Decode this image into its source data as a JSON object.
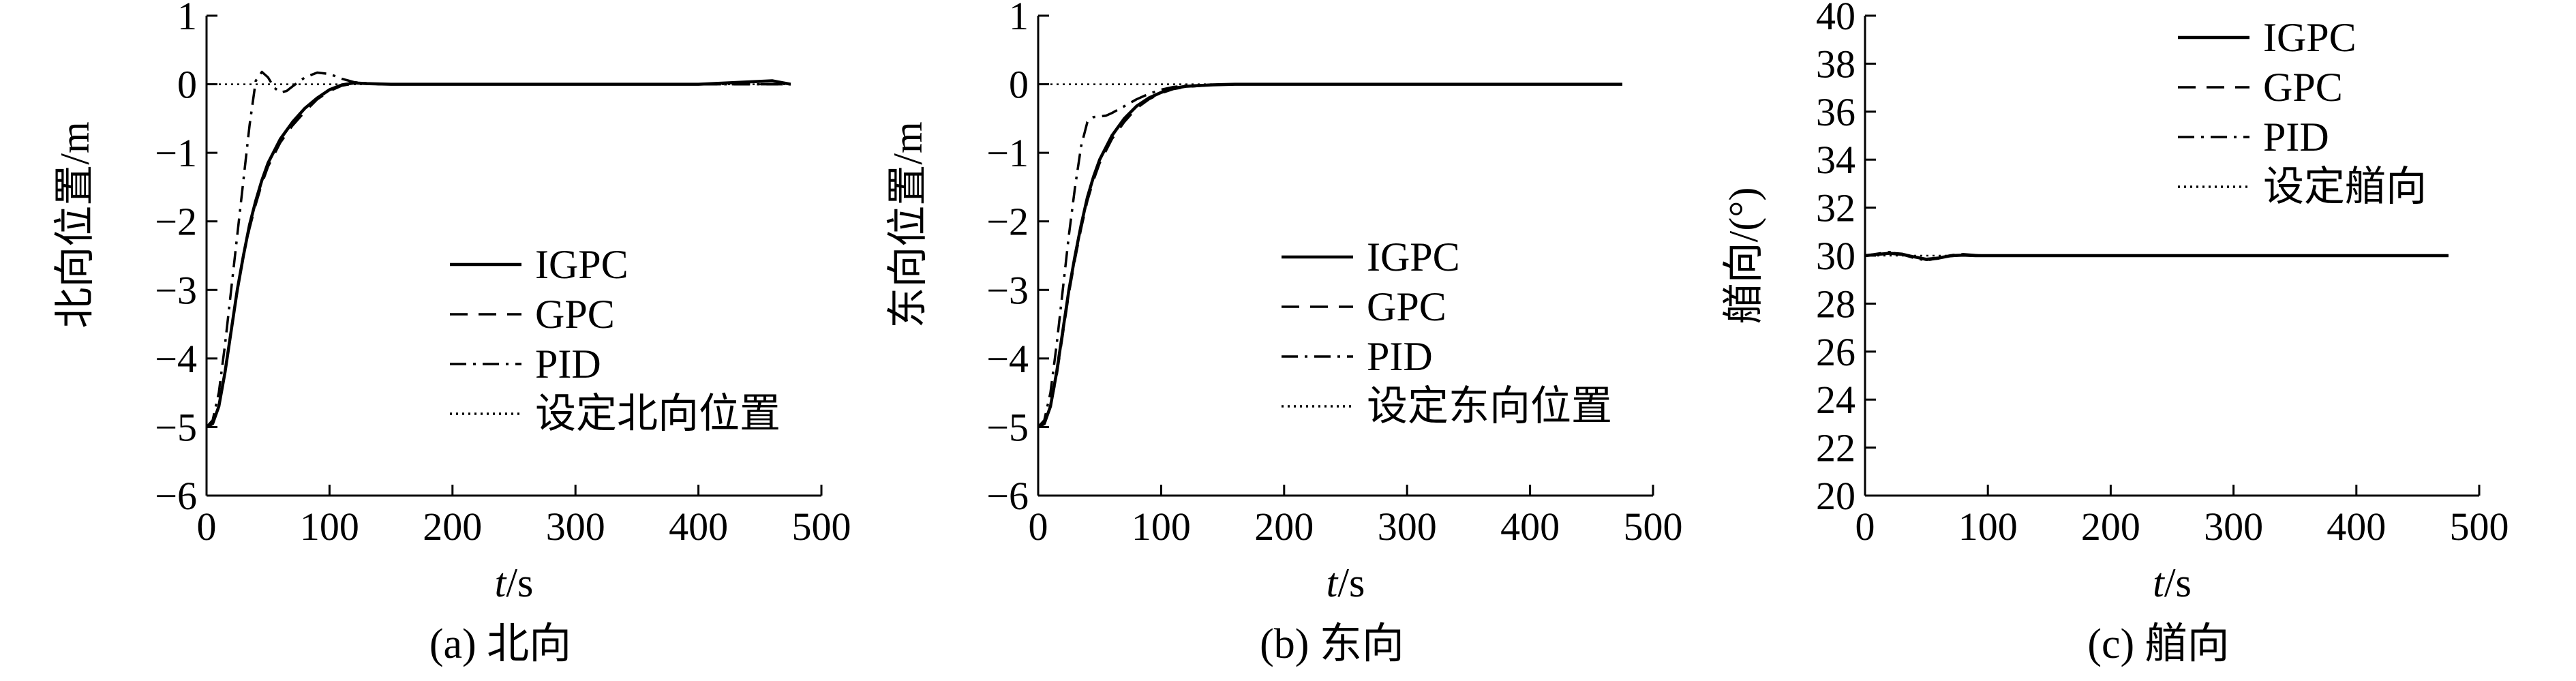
{
  "chart_data": [
    {
      "type": "line",
      "panel_label": "(a) 北向",
      "xlabel_italic": "t",
      "xlabel_unit": "/s",
      "ylabel": "北向位置/m",
      "xlim": [
        0,
        500
      ],
      "ylim": [
        -6,
        1
      ],
      "xticks": [
        "0",
        "100",
        "200",
        "300",
        "400",
        "500"
      ],
      "yticks": [
        "−6",
        "−5",
        "−4",
        "−3",
        "−2",
        "−1",
        "0",
        "1"
      ],
      "legend_position": "center-right",
      "series": [
        {
          "name": "IGPC",
          "style": "solid",
          "x": [
            0,
            5,
            10,
            15,
            20,
            25,
            30,
            35,
            40,
            45,
            50,
            60,
            70,
            80,
            90,
            100,
            110,
            120,
            130,
            150,
            200,
            300,
            400,
            460,
            475
          ],
          "y": [
            -5,
            -4.95,
            -4.7,
            -4.2,
            -3.6,
            -3.0,
            -2.5,
            -2.05,
            -1.7,
            -1.4,
            -1.15,
            -0.8,
            -0.55,
            -0.35,
            -0.2,
            -0.08,
            -0.01,
            0.02,
            0.01,
            0,
            0,
            0,
            0,
            0.05,
            0
          ]
        },
        {
          "name": "GPC",
          "style": "dashed",
          "x": [
            0,
            5,
            10,
            15,
            20,
            25,
            30,
            35,
            40,
            45,
            50,
            60,
            70,
            80,
            90,
            100,
            110,
            120,
            130,
            150,
            200,
            300,
            400,
            475
          ],
          "y": [
            -5,
            -4.95,
            -4.7,
            -4.2,
            -3.6,
            -3.0,
            -2.5,
            -2.1,
            -1.75,
            -1.45,
            -1.2,
            -0.85,
            -0.6,
            -0.4,
            -0.22,
            -0.1,
            -0.02,
            0.01,
            0.01,
            0,
            0,
            0,
            0,
            0
          ]
        },
        {
          "name": "PID",
          "style": "dash-dot",
          "x": [
            0,
            5,
            10,
            15,
            20,
            25,
            30,
            35,
            40,
            45,
            50,
            55,
            60,
            65,
            70,
            80,
            90,
            100,
            110,
            120,
            140,
            200,
            300,
            400,
            475
          ],
          "y": [
            -5,
            -4.9,
            -4.5,
            -3.8,
            -3.0,
            -2.2,
            -1.4,
            -0.6,
            0.05,
            0.18,
            0.1,
            -0.05,
            -0.12,
            -0.1,
            -0.03,
            0.1,
            0.17,
            0.15,
            0.08,
            0.03,
            0,
            0,
            0,
            0,
            0
          ]
        },
        {
          "name": "设定北向位置",
          "style": "dotted",
          "x": [
            0,
            475
          ],
          "y": [
            0,
            0
          ]
        }
      ]
    },
    {
      "type": "line",
      "panel_label": "(b) 东向",
      "xlabel_italic": "t",
      "xlabel_unit": "/s",
      "ylabel": "东向位置/m",
      "xlim": [
        0,
        500
      ],
      "ylim": [
        -6,
        1
      ],
      "xticks": [
        "0",
        "100",
        "200",
        "300",
        "400",
        "500"
      ],
      "yticks": [
        "−6",
        "−5",
        "−4",
        "−3",
        "−2",
        "−1",
        "0",
        "1"
      ],
      "legend_position": "center-right",
      "series": [
        {
          "name": "IGPC",
          "style": "solid",
          "x": [
            0,
            5,
            10,
            15,
            20,
            25,
            30,
            35,
            40,
            45,
            50,
            60,
            70,
            80,
            90,
            100,
            110,
            120,
            140,
            160,
            200,
            300,
            400,
            475
          ],
          "y": [
            -5,
            -4.95,
            -4.7,
            -4.2,
            -3.6,
            -3.0,
            -2.5,
            -2.05,
            -1.65,
            -1.35,
            -1.1,
            -0.75,
            -0.5,
            -0.32,
            -0.2,
            -0.12,
            -0.06,
            -0.03,
            -0.01,
            0,
            0,
            0,
            0,
            0
          ]
        },
        {
          "name": "GPC",
          "style": "dashed",
          "x": [
            0,
            5,
            10,
            15,
            20,
            25,
            30,
            35,
            40,
            45,
            50,
            60,
            70,
            80,
            90,
            100,
            110,
            120,
            140,
            160,
            200,
            300,
            400,
            475
          ],
          "y": [
            -5,
            -4.95,
            -4.7,
            -4.25,
            -3.65,
            -3.05,
            -2.55,
            -2.1,
            -1.7,
            -1.4,
            -1.15,
            -0.8,
            -0.55,
            -0.35,
            -0.22,
            -0.13,
            -0.07,
            -0.04,
            -0.01,
            0,
            0,
            0,
            0,
            0
          ]
        },
        {
          "name": "PID",
          "style": "dash-dot",
          "x": [
            0,
            5,
            10,
            15,
            20,
            25,
            30,
            35,
            40,
            45,
            50,
            55,
            60,
            70,
            80,
            90,
            100,
            110,
            120,
            140,
            160,
            200,
            300,
            400,
            475
          ],
          "y": [
            -5,
            -4.9,
            -4.5,
            -3.8,
            -3.0,
            -2.2,
            -1.5,
            -0.9,
            -0.55,
            -0.48,
            -0.47,
            -0.46,
            -0.42,
            -0.32,
            -0.22,
            -0.14,
            -0.08,
            -0.04,
            -0.02,
            -0.01,
            0,
            0,
            0,
            0,
            0
          ]
        },
        {
          "name": "设定东向位置",
          "style": "dotted",
          "x": [
            0,
            475
          ],
          "y": [
            0,
            0
          ]
        }
      ]
    },
    {
      "type": "line",
      "panel_label": "(c) 艏向",
      "xlabel_italic": "t",
      "xlabel_unit": "/s",
      "ylabel": "艏向/(°)",
      "xlim": [
        0,
        500
      ],
      "ylim": [
        20,
        40
      ],
      "xticks": [
        "0",
        "100",
        "200",
        "300",
        "400",
        "500"
      ],
      "yticks": [
        "20",
        "22",
        "24",
        "26",
        "28",
        "30",
        "32",
        "34",
        "36",
        "38",
        "40"
      ],
      "legend_position": "top-right",
      "series": [
        {
          "name": "IGPC",
          "style": "solid",
          "x": [
            0,
            10,
            20,
            30,
            40,
            50,
            60,
            70,
            80,
            90,
            100,
            120,
            150,
            200,
            300,
            400,
            475
          ],
          "y": [
            30,
            30.05,
            30.1,
            30.05,
            29.95,
            29.85,
            29.9,
            30.0,
            30.02,
            30.0,
            30.0,
            30.0,
            30.0,
            30.0,
            30.0,
            30.0,
            30.0
          ]
        },
        {
          "name": "GPC",
          "style": "dashed",
          "x": [
            0,
            10,
            20,
            30,
            40,
            50,
            60,
            70,
            80,
            90,
            100,
            150,
            200,
            300,
            400,
            475
          ],
          "y": [
            30,
            30.05,
            30.12,
            30.08,
            29.95,
            29.82,
            29.88,
            29.98,
            30.03,
            30.01,
            30.0,
            30.0,
            30.0,
            30.0,
            30.0,
            30.0
          ]
        },
        {
          "name": "PID",
          "style": "dash-dot",
          "x": [
            0,
            10,
            20,
            30,
            40,
            50,
            60,
            70,
            80,
            90,
            100,
            150,
            200,
            300,
            400,
            475
          ],
          "y": [
            30,
            30.08,
            30.15,
            30.05,
            29.9,
            29.8,
            29.9,
            30.02,
            30.06,
            30.02,
            30.0,
            30.0,
            30.0,
            30.0,
            30.0,
            30.0
          ]
        },
        {
          "name": "设定艏向",
          "style": "dotted",
          "x": [
            0,
            475
          ],
          "y": [
            30,
            30
          ]
        }
      ]
    }
  ]
}
